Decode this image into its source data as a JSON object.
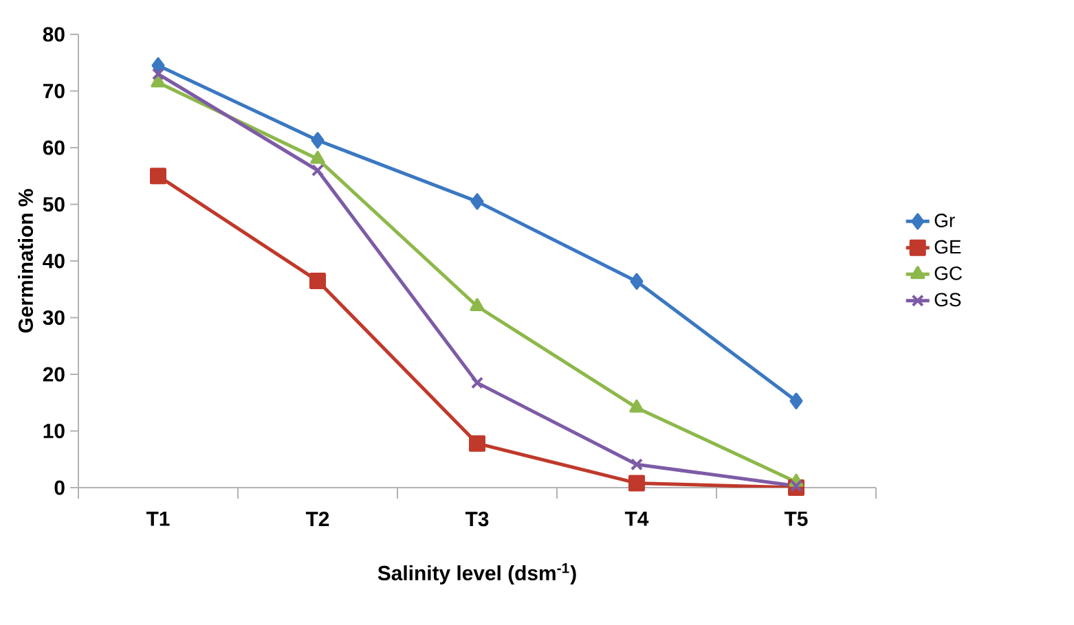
{
  "chart_data": {
    "type": "line",
    "xlabel": "Salinity level (dsm$^{-1}$)",
    "ylabel": "Germination %",
    "categories": [
      "T1",
      "T2",
      "T3",
      "T4",
      "T5"
    ],
    "ylim": [
      0,
      80
    ],
    "yticks": [
      0,
      10,
      20,
      30,
      40,
      50,
      60,
      70,
      80
    ],
    "grid": false,
    "legend": "right",
    "series": [
      {
        "name": "Gr",
        "color": "#3a78c2",
        "marker": "diamond",
        "values": [
          74.5,
          61.3,
          50.5,
          36.4,
          15.3
        ]
      },
      {
        "name": "GE",
        "color": "#c0392b",
        "marker": "square",
        "values": [
          55,
          36.5,
          7.8,
          0.8,
          0
        ]
      },
      {
        "name": "GC",
        "color": "#8db84a",
        "marker": "triangle",
        "values": [
          71.5,
          58,
          32,
          14.1,
          1
        ]
      },
      {
        "name": "GS",
        "color": "#7d5ba6",
        "marker": "cross",
        "values": [
          73,
          56,
          18.5,
          4.1,
          0.3
        ]
      }
    ]
  }
}
